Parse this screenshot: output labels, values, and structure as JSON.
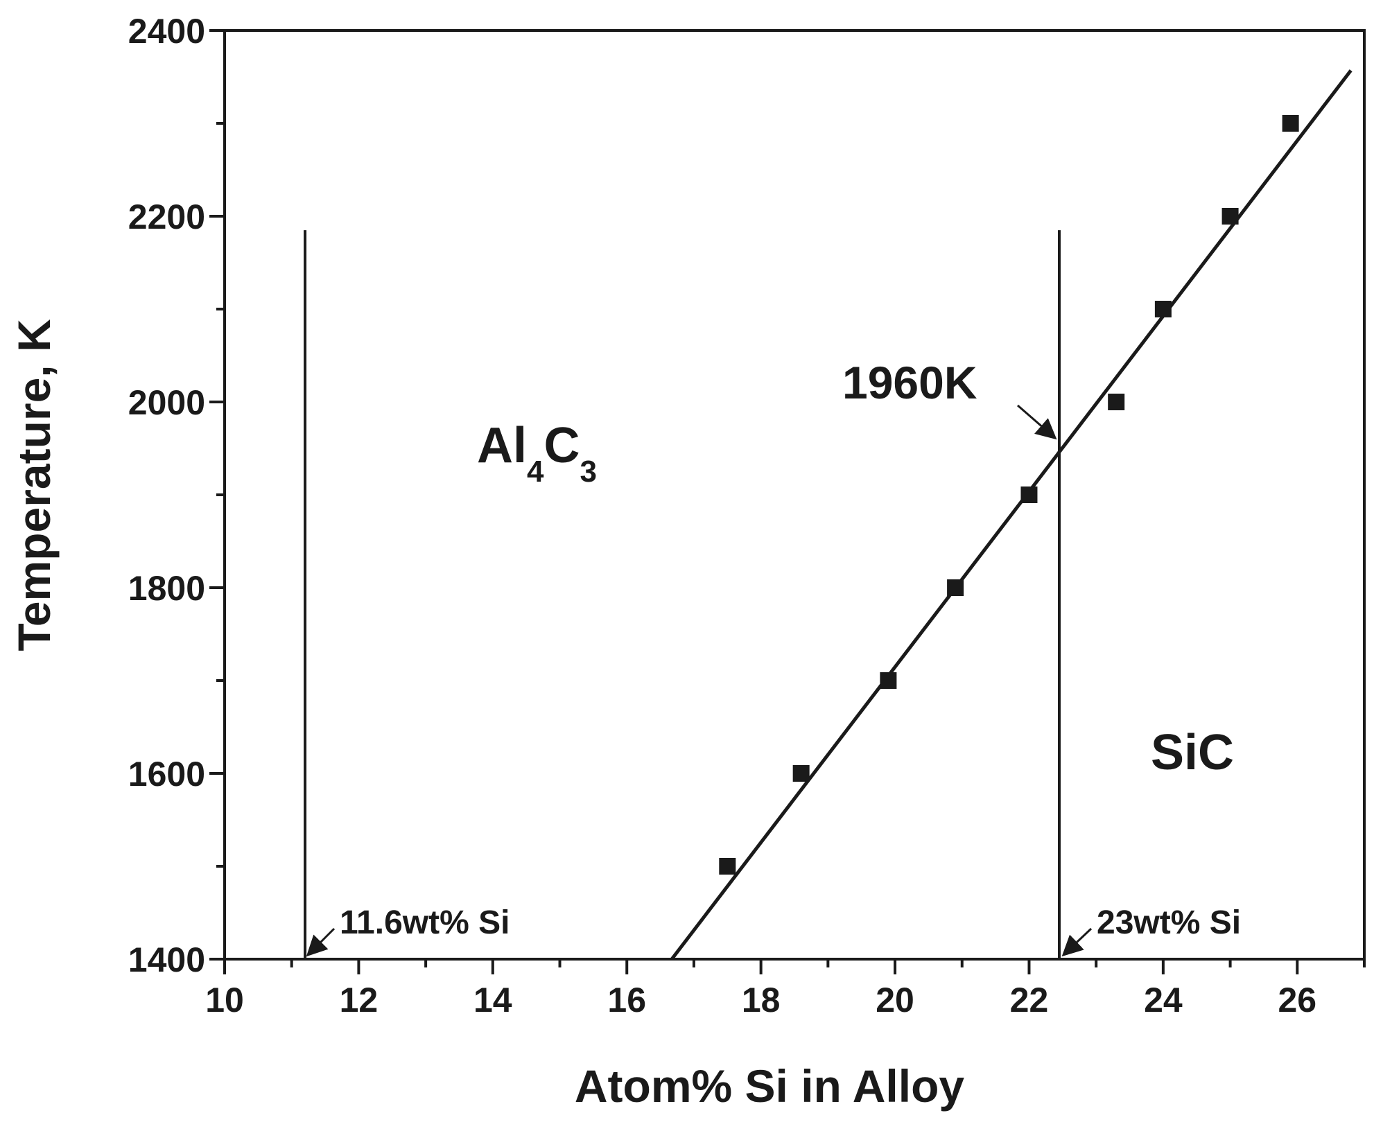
{
  "chart_data": {
    "type": "scatter",
    "xlabel": "Atom% Si in Alloy",
    "ylabel": "Temperature, K",
    "xlim": [
      10,
      27
    ],
    "ylim": [
      1400,
      2400
    ],
    "x_ticks": [
      "10",
      "12",
      "14",
      "16",
      "18",
      "20",
      "22",
      "24",
      "26"
    ],
    "y_ticks": [
      "1400",
      "1600",
      "1800",
      "2000",
      "2200",
      "2400"
    ],
    "grid": false,
    "series": [
      {
        "x": [
          17.5,
          18.6,
          19.9,
          20.9,
          22.0,
          23.3,
          24.0,
          25.0,
          25.9
        ],
        "y": [
          1500,
          1600,
          1700,
          1800,
          1900,
          2000,
          2100,
          2200,
          2300
        ]
      }
    ],
    "fit_line": {
      "x": [
        16.67,
        26.8
      ],
      "y": [
        1400,
        2357
      ]
    },
    "vertical_lines": [
      {
        "x": 11.2,
        "y_top": 2185,
        "label": "11.6wt% Si"
      },
      {
        "x": 22.45,
        "y_top": 2185,
        "label": "23wt% Si"
      }
    ],
    "annotations": {
      "intersection": {
        "text": "1960K",
        "x": 22.45,
        "y": 1955
      },
      "region_left_main": "Al",
      "region_left_sub1": "4",
      "region_left_main2": "C",
      "region_left_sub2": "3",
      "region_right": "SiC"
    },
    "colors": {
      "ink": "#1a1a1a",
      "background": "#ffffff"
    }
  }
}
